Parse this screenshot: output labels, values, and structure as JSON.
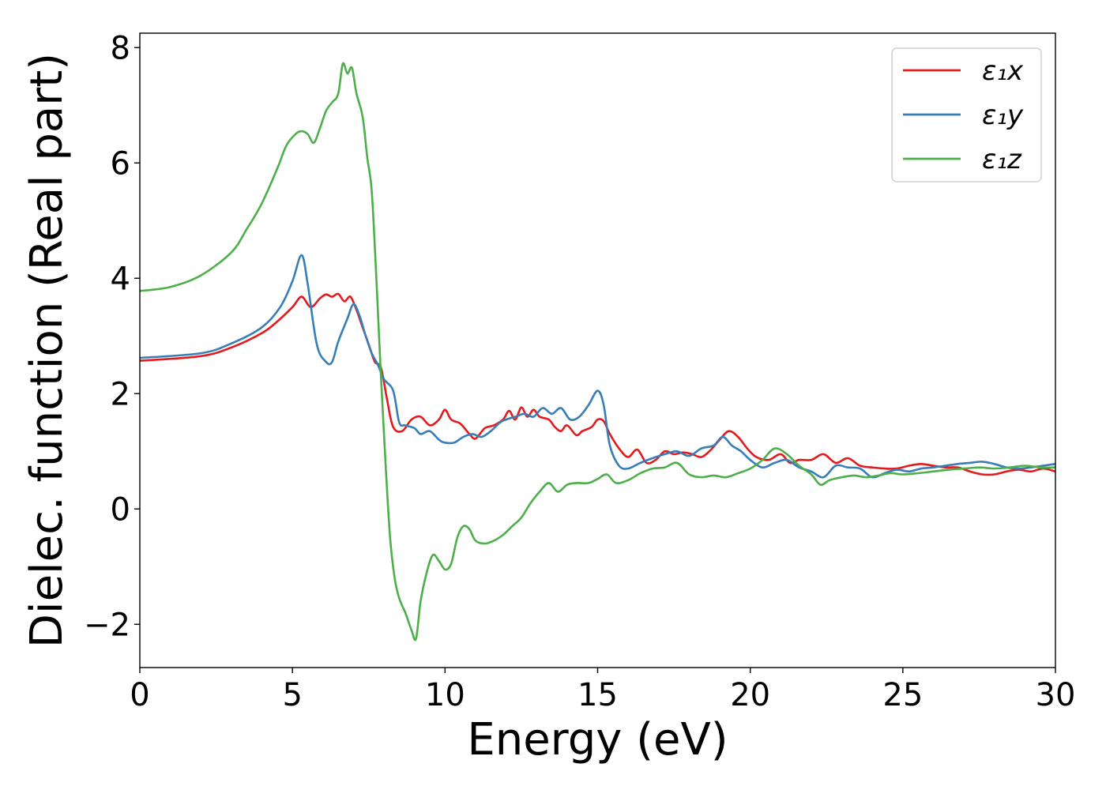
{
  "chart_data": {
    "type": "line",
    "xlabel": "Energy (eV)",
    "ylabel": "Dielec. function (Real part)",
    "xlim": [
      0,
      30
    ],
    "ylim": [
      -2.75,
      8.25
    ],
    "xticks": [
      0,
      5,
      10,
      15,
      20,
      25,
      30
    ],
    "xtick_labels": [
      "0",
      "5",
      "10",
      "15",
      "20",
      "25",
      "30"
    ],
    "yticks": [
      -2,
      0,
      2,
      4,
      6,
      8
    ],
    "ytick_labels": [
      "−2",
      "0",
      "2",
      "4",
      "6",
      "8"
    ],
    "grid": false,
    "legend": "top-right",
    "series": [
      {
        "name": "ε₁x",
        "color": "#e41a1c",
        "points": [
          [
            0,
            2.57
          ],
          [
            2,
            2.65
          ],
          [
            3,
            2.8
          ],
          [
            4,
            3.05
          ],
          [
            4.5,
            3.25
          ],
          [
            5,
            3.5
          ],
          [
            5.3,
            3.68
          ],
          [
            5.6,
            3.5
          ],
          [
            5.9,
            3.65
          ],
          [
            6.1,
            3.72
          ],
          [
            6.3,
            3.68
          ],
          [
            6.5,
            3.73
          ],
          [
            6.7,
            3.6
          ],
          [
            6.9,
            3.68
          ],
          [
            7.1,
            3.45
          ],
          [
            7.3,
            3.15
          ],
          [
            7.5,
            2.85
          ],
          [
            7.7,
            2.55
          ],
          [
            7.9,
            2.45
          ],
          [
            8.1,
            1.9
          ],
          [
            8.3,
            1.42
          ],
          [
            8.6,
            1.35
          ],
          [
            8.9,
            1.55
          ],
          [
            9.2,
            1.6
          ],
          [
            9.5,
            1.45
          ],
          [
            9.8,
            1.55
          ],
          [
            10.0,
            1.72
          ],
          [
            10.2,
            1.55
          ],
          [
            10.5,
            1.48
          ],
          [
            10.8,
            1.3
          ],
          [
            11.0,
            1.22
          ],
          [
            11.3,
            1.4
          ],
          [
            11.6,
            1.45
          ],
          [
            11.9,
            1.55
          ],
          [
            12.1,
            1.7
          ],
          [
            12.3,
            1.55
          ],
          [
            12.5,
            1.76
          ],
          [
            12.7,
            1.6
          ],
          [
            12.9,
            1.72
          ],
          [
            13.1,
            1.6
          ],
          [
            13.4,
            1.55
          ],
          [
            13.6,
            1.42
          ],
          [
            13.8,
            1.35
          ],
          [
            14.0,
            1.45
          ],
          [
            14.3,
            1.28
          ],
          [
            14.5,
            1.35
          ],
          [
            14.8,
            1.42
          ],
          [
            15.0,
            1.55
          ],
          [
            15.2,
            1.52
          ],
          [
            15.4,
            1.3
          ],
          [
            15.7,
            1.05
          ],
          [
            16.0,
            0.9
          ],
          [
            16.3,
            1.03
          ],
          [
            16.6,
            0.8
          ],
          [
            16.9,
            0.85
          ],
          [
            17.2,
            1.0
          ],
          [
            17.5,
            0.95
          ],
          [
            17.8,
            0.98
          ],
          [
            18.1,
            0.95
          ],
          [
            18.4,
            0.9
          ],
          [
            18.7,
            1.02
          ],
          [
            19.0,
            1.2
          ],
          [
            19.3,
            1.35
          ],
          [
            19.6,
            1.25
          ],
          [
            19.9,
            1.05
          ],
          [
            20.2,
            0.9
          ],
          [
            20.6,
            0.85
          ],
          [
            21.0,
            0.95
          ],
          [
            21.3,
            0.8
          ],
          [
            21.6,
            0.85
          ],
          [
            22.0,
            0.85
          ],
          [
            22.4,
            0.95
          ],
          [
            22.8,
            0.8
          ],
          [
            23.2,
            0.88
          ],
          [
            23.6,
            0.75
          ],
          [
            24.0,
            0.72
          ],
          [
            24.4,
            0.7
          ],
          [
            24.8,
            0.7
          ],
          [
            25.2,
            0.75
          ],
          [
            25.6,
            0.78
          ],
          [
            26.0,
            0.75
          ],
          [
            26.4,
            0.72
          ],
          [
            26.8,
            0.72
          ],
          [
            27.2,
            0.65
          ],
          [
            27.6,
            0.6
          ],
          [
            28.0,
            0.6
          ],
          [
            28.4,
            0.65
          ],
          [
            28.8,
            0.68
          ],
          [
            29.2,
            0.65
          ],
          [
            29.6,
            0.7
          ],
          [
            30,
            0.65
          ]
        ]
      },
      {
        "name": "ε₁y",
        "color": "#377eb8",
        "points": [
          [
            0,
            2.62
          ],
          [
            2,
            2.7
          ],
          [
            3,
            2.87
          ],
          [
            4,
            3.15
          ],
          [
            4.6,
            3.5
          ],
          [
            5.0,
            3.95
          ],
          [
            5.3,
            4.4
          ],
          [
            5.5,
            3.9
          ],
          [
            5.8,
            2.85
          ],
          [
            6.1,
            2.55
          ],
          [
            6.3,
            2.55
          ],
          [
            6.5,
            2.9
          ],
          [
            6.8,
            3.3
          ],
          [
            7.0,
            3.55
          ],
          [
            7.2,
            3.35
          ],
          [
            7.4,
            3.0
          ],
          [
            7.6,
            2.7
          ],
          [
            7.8,
            2.5
          ],
          [
            8.0,
            2.25
          ],
          [
            8.3,
            2.05
          ],
          [
            8.5,
            1.5
          ],
          [
            8.7,
            1.45
          ],
          [
            9.0,
            1.4
          ],
          [
            9.2,
            1.3
          ],
          [
            9.5,
            1.35
          ],
          [
            9.8,
            1.2
          ],
          [
            10.0,
            1.15
          ],
          [
            10.3,
            1.15
          ],
          [
            10.6,
            1.25
          ],
          [
            10.9,
            1.3
          ],
          [
            11.2,
            1.25
          ],
          [
            11.5,
            1.35
          ],
          [
            11.8,
            1.5
          ],
          [
            12.0,
            1.55
          ],
          [
            12.3,
            1.6
          ],
          [
            12.6,
            1.65
          ],
          [
            12.9,
            1.6
          ],
          [
            13.2,
            1.75
          ],
          [
            13.5,
            1.65
          ],
          [
            13.8,
            1.75
          ],
          [
            14.1,
            1.55
          ],
          [
            14.4,
            1.6
          ],
          [
            14.7,
            1.8
          ],
          [
            15.0,
            2.05
          ],
          [
            15.2,
            1.8
          ],
          [
            15.4,
            1.1
          ],
          [
            15.7,
            0.75
          ],
          [
            16.0,
            0.7
          ],
          [
            16.4,
            0.8
          ],
          [
            16.8,
            0.88
          ],
          [
            17.2,
            0.95
          ],
          [
            17.6,
            1.0
          ],
          [
            18.0,
            0.92
          ],
          [
            18.4,
            1.05
          ],
          [
            18.8,
            1.1
          ],
          [
            19.1,
            1.25
          ],
          [
            19.4,
            1.1
          ],
          [
            19.7,
            1.0
          ],
          [
            20.0,
            0.85
          ],
          [
            20.4,
            0.72
          ],
          [
            20.8,
            0.8
          ],
          [
            21.2,
            0.85
          ],
          [
            21.6,
            0.72
          ],
          [
            22.0,
            0.65
          ],
          [
            22.4,
            0.55
          ],
          [
            22.8,
            0.75
          ],
          [
            23.2,
            0.72
          ],
          [
            23.6,
            0.7
          ],
          [
            24.0,
            0.55
          ],
          [
            24.4,
            0.62
          ],
          [
            24.8,
            0.68
          ],
          [
            25.2,
            0.65
          ],
          [
            25.6,
            0.7
          ],
          [
            26.0,
            0.72
          ],
          [
            26.4,
            0.75
          ],
          [
            26.8,
            0.78
          ],
          [
            27.2,
            0.8
          ],
          [
            27.6,
            0.82
          ],
          [
            28.0,
            0.78
          ],
          [
            28.4,
            0.72
          ],
          [
            28.8,
            0.7
          ],
          [
            29.2,
            0.72
          ],
          [
            29.6,
            0.75
          ],
          [
            30,
            0.78
          ]
        ]
      },
      {
        "name": "ε₁z",
        "color": "#4daf4a",
        "points": [
          [
            0,
            3.78
          ],
          [
            1,
            3.85
          ],
          [
            2,
            4.05
          ],
          [
            3,
            4.45
          ],
          [
            3.5,
            4.85
          ],
          [
            4,
            5.3
          ],
          [
            4.5,
            5.9
          ],
          [
            4.8,
            6.3
          ],
          [
            5.1,
            6.5
          ],
          [
            5.3,
            6.55
          ],
          [
            5.5,
            6.5
          ],
          [
            5.7,
            6.35
          ],
          [
            5.9,
            6.6
          ],
          [
            6.1,
            6.9
          ],
          [
            6.3,
            7.05
          ],
          [
            6.5,
            7.2
          ],
          [
            6.65,
            7.72
          ],
          [
            6.8,
            7.55
          ],
          [
            6.95,
            7.65
          ],
          [
            7.1,
            7.2
          ],
          [
            7.3,
            6.8
          ],
          [
            7.45,
            6.1
          ],
          [
            7.6,
            5.5
          ],
          [
            7.75,
            4.0
          ],
          [
            7.9,
            2.3
          ],
          [
            8.05,
            0.8
          ],
          [
            8.2,
            -0.5
          ],
          [
            8.35,
            -1.2
          ],
          [
            8.5,
            -1.55
          ],
          [
            8.7,
            -1.8
          ],
          [
            8.9,
            -2.1
          ],
          [
            9.05,
            -2.25
          ],
          [
            9.2,
            -1.6
          ],
          [
            9.4,
            -1.1
          ],
          [
            9.6,
            -0.8
          ],
          [
            9.8,
            -0.9
          ],
          [
            10.0,
            -1.05
          ],
          [
            10.2,
            -0.95
          ],
          [
            10.4,
            -0.5
          ],
          [
            10.6,
            -0.3
          ],
          [
            10.8,
            -0.35
          ],
          [
            11.0,
            -0.55
          ],
          [
            11.3,
            -0.6
          ],
          [
            11.6,
            -0.55
          ],
          [
            11.9,
            -0.45
          ],
          [
            12.2,
            -0.3
          ],
          [
            12.5,
            -0.15
          ],
          [
            12.8,
            0.1
          ],
          [
            13.1,
            0.3
          ],
          [
            13.4,
            0.45
          ],
          [
            13.7,
            0.3
          ],
          [
            14.0,
            0.42
          ],
          [
            14.3,
            0.45
          ],
          [
            14.7,
            0.45
          ],
          [
            15.0,
            0.52
          ],
          [
            15.3,
            0.6
          ],
          [
            15.6,
            0.45
          ],
          [
            16.0,
            0.5
          ],
          [
            16.4,
            0.62
          ],
          [
            16.8,
            0.7
          ],
          [
            17.2,
            0.72
          ],
          [
            17.6,
            0.8
          ],
          [
            18.0,
            0.6
          ],
          [
            18.4,
            0.55
          ],
          [
            18.8,
            0.58
          ],
          [
            19.2,
            0.55
          ],
          [
            19.6,
            0.62
          ],
          [
            20.0,
            0.7
          ],
          [
            20.4,
            0.85
          ],
          [
            20.8,
            1.05
          ],
          [
            21.2,
            0.95
          ],
          [
            21.6,
            0.75
          ],
          [
            22.0,
            0.6
          ],
          [
            22.3,
            0.42
          ],
          [
            22.6,
            0.5
          ],
          [
            23.0,
            0.55
          ],
          [
            23.4,
            0.58
          ],
          [
            23.8,
            0.55
          ],
          [
            24.2,
            0.58
          ],
          [
            24.6,
            0.62
          ],
          [
            25.0,
            0.6
          ],
          [
            25.5,
            0.62
          ],
          [
            26.0,
            0.65
          ],
          [
            26.5,
            0.68
          ],
          [
            27.0,
            0.7
          ],
          [
            27.5,
            0.72
          ],
          [
            28.0,
            0.7
          ],
          [
            28.5,
            0.72
          ],
          [
            29.0,
            0.75
          ],
          [
            29.5,
            0.72
          ],
          [
            30,
            0.72
          ]
        ]
      }
    ]
  }
}
